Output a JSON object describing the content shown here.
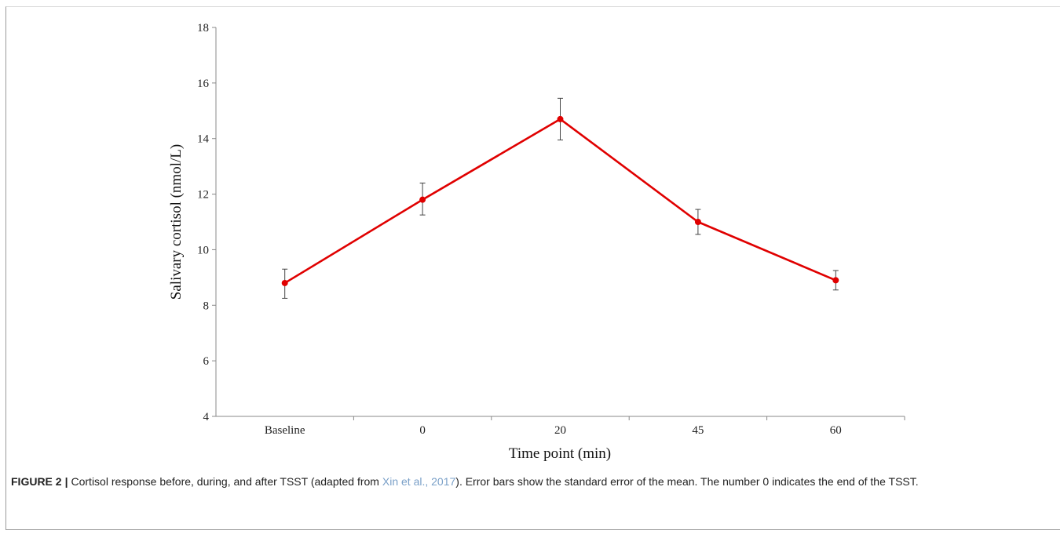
{
  "chart_data": {
    "type": "line",
    "title": "",
    "xlabel": "Time point (min)",
    "ylabel": "Salivary cortisol (nmol/L)",
    "categories": [
      "Baseline",
      "0",
      "20",
      "45",
      "60"
    ],
    "ylim": [
      4,
      18
    ],
    "yticks": [
      4,
      6,
      8,
      10,
      12,
      14,
      16,
      18
    ],
    "series": [
      {
        "values": [
          8.8,
          11.8,
          14.7,
          11.0,
          8.9
        ],
        "error_low": [
          8.25,
          11.25,
          13.95,
          10.55,
          8.55
        ],
        "error_high": [
          9.3,
          12.4,
          15.45,
          11.45,
          9.25
        ],
        "color": "#e00000"
      }
    ],
    "grid": false,
    "legend": "none"
  },
  "caption": {
    "label": "FIGURE 2",
    "separator": "|",
    "text_before": "Cortisol response before, during, and after TSST (adapted from ",
    "citation": "Xin et al., 2017",
    "text_after": "). Error bars show the standard error of the mean. The number 0 indicates the end of the TSST."
  },
  "colors": {
    "line": "#e00000",
    "axis": "#888888",
    "citation_link": "#7aa0c8"
  }
}
